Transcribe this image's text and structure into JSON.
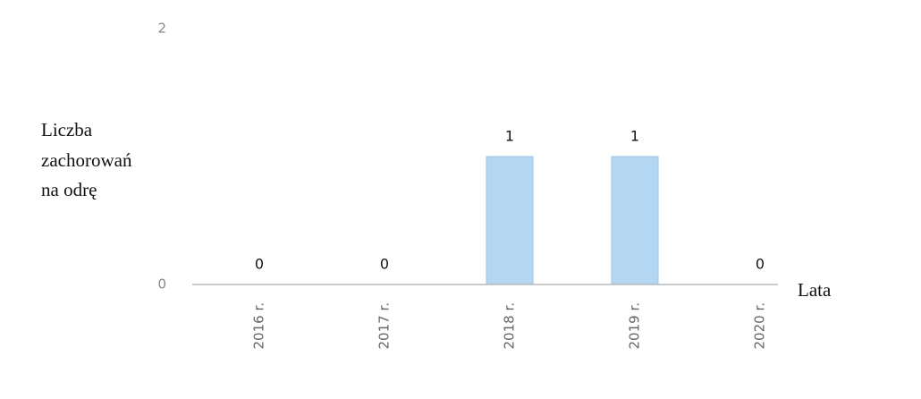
{
  "chart_data": {
    "type": "bar",
    "y_label": [
      "Liczba",
      "zachorowań",
      "na odrę"
    ],
    "x_label": "Lata",
    "categories": [
      "2016 r.",
      "2017 r.",
      "2018 r.",
      "2019 r.",
      "2020 r."
    ],
    "values": [
      0,
      0,
      1,
      1,
      0
    ],
    "color": "#b3d6f2",
    "ylim": [
      0,
      2
    ],
    "yticks": [
      0,
      2
    ],
    "grid": false
  }
}
